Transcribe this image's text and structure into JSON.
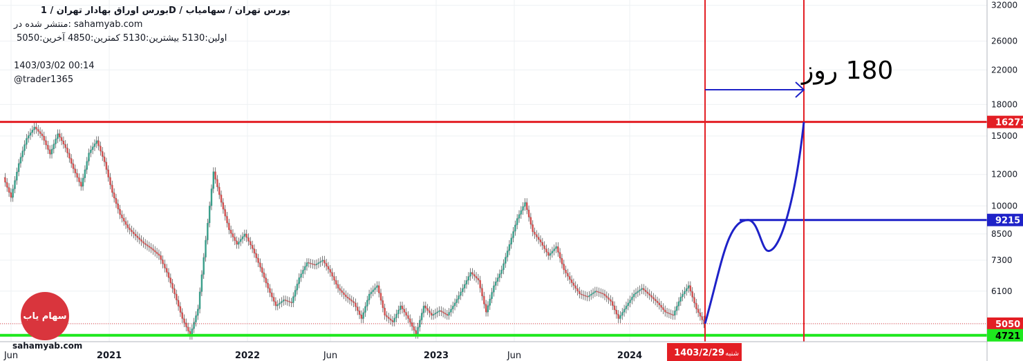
{
  "header": {
    "title": "بورس اوراق بهادار تهران /  1D  /  بورس تهران / سهامیاب",
    "published": "منتشر شده در: sahamyab.com",
    "ohlc": "اولین:5130  بیشترین:5130  کمترین:4850  آخرین:5050",
    "datetime": "1403/03/02 00:14",
    "author": "@trader1365"
  },
  "logo_text": "سهام یاب",
  "watermark": "sahamyab.com",
  "chart_data": {
    "type": "line",
    "title": "",
    "xlabel": "",
    "ylabel": "",
    "y_scale": "log",
    "ylim": [
      4550,
      33000
    ],
    "x_ticks": [
      "Jun",
      "2021",
      "2022",
      "Jun",
      "2023",
      "Jun",
      "2024"
    ],
    "y_ticks": [
      "32000",
      "26000",
      "22000",
      "18000",
      "15000",
      "12000",
      "10000",
      "8500",
      "7300",
      "6100",
      "5050"
    ],
    "price_labels": [
      {
        "text": "16271",
        "value": 16271,
        "color": "#e31e24"
      },
      {
        "text": "9215",
        "value": 9215,
        "color": "#1e22c8"
      },
      {
        "text": "5050",
        "value": 5050,
        "color": "#e31e24"
      },
      {
        "text": "4721",
        "value": 4721,
        "color": "#1ee81e"
      }
    ],
    "horizontal_levels": [
      {
        "value": 16271,
        "color": "#e31e24"
      },
      {
        "value": 9215,
        "color": "#1e22c8"
      },
      {
        "value": 4721,
        "color": "#1ee81e"
      }
    ],
    "projection": {
      "label": "180 روز",
      "date_label": "1403/2/29",
      "day_label": "شنبه",
      "points": [
        [
          0,
          5050
        ],
        [
          17,
          9215
        ],
        [
          25,
          7700
        ],
        [
          39,
          16271
        ]
      ]
    },
    "series": [
      {
        "values": [
          11800,
          10500,
          12800,
          14800,
          15800,
          15000,
          13500,
          15200,
          14000,
          12400,
          11200,
          13600,
          14600,
          12900,
          10800,
          9500,
          8800,
          8400,
          8050,
          7800,
          7500,
          6800,
          6000,
          5200,
          4721,
          5500,
          8200,
          12200,
          10200,
          8700,
          8000,
          8500,
          7800,
          7000,
          6200,
          5600,
          5800,
          5700,
          6600,
          7200,
          7100,
          7300,
          6800,
          6200,
          5900,
          5700,
          5200,
          6000,
          6300,
          5300,
          5100,
          5600,
          5200,
          4750,
          5600,
          5300,
          5450,
          5300,
          5700,
          6200,
          6800,
          6500,
          5400,
          6300,
          6900,
          8000,
          9300,
          10200,
          8600,
          8100,
          7500,
          7900,
          6900,
          6400,
          6000,
          5900,
          6100,
          6000,
          5750,
          5200,
          5600,
          6000,
          6200,
          5950,
          5700,
          5400,
          5300,
          5900,
          6300,
          5500,
          5050
        ]
      }
    ]
  }
}
